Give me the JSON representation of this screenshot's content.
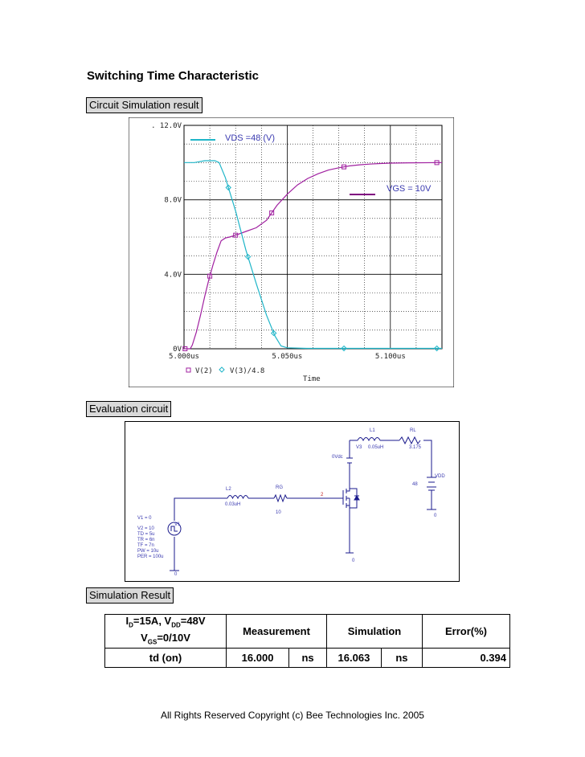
{
  "title": "Switching Time Characteristic",
  "sections": {
    "circuit_sim": "Circuit Simulation result",
    "evaluation": "Evaluation circuit",
    "sim_result": "Simulation Result"
  },
  "chart_data": {
    "type": "line",
    "x_unit": "us",
    "xlim": [
      5.0,
      5.125
    ],
    "ylim": [
      0,
      12
    ],
    "y_ticks": [
      ". 12.0V",
      "8.0V",
      "4.0V",
      "0V"
    ],
    "y_tick_values": [
      12,
      8,
      4,
      0
    ],
    "x_ticks": [
      "5.000us",
      "5.050us",
      "5.100us"
    ],
    "x_tick_values": [
      5.0,
      5.05,
      5.1
    ],
    "xlabel": "Time",
    "grid": true,
    "series": [
      {
        "name": "V(2)",
        "color": "#a020a0",
        "marker": "square",
        "x": [
          5.0,
          5.003,
          5.004,
          5.006,
          5.008,
          5.01,
          5.012,
          5.014,
          5.016,
          5.018,
          5.02,
          5.022,
          5.025,
          5.03,
          5.035,
          5.04,
          5.045,
          5.05,
          5.055,
          5.06,
          5.065,
          5.07,
          5.075,
          5.08,
          5.085,
          5.09,
          5.095,
          5.1,
          5.11,
          5.125
        ],
        "y": [
          0,
          0,
          0.2,
          0.9,
          1.8,
          2.8,
          3.7,
          4.5,
          5.2,
          5.8,
          5.95,
          6.0,
          6.1,
          6.3,
          6.5,
          6.9,
          7.7,
          8.3,
          8.8,
          9.15,
          9.4,
          9.6,
          9.72,
          9.82,
          9.88,
          9.92,
          9.95,
          9.97,
          9.99,
          10.0
        ]
      },
      {
        "name": "V(3)/4.8",
        "color": "#1fb5c8",
        "marker": "diamond",
        "x": [
          5.0,
          5.005,
          5.01,
          5.015,
          5.017,
          5.02,
          5.025,
          5.03,
          5.035,
          5.04,
          5.044,
          5.047,
          5.05,
          5.06,
          5.08,
          5.1,
          5.125
        ],
        "y": [
          10.0,
          10.0,
          10.1,
          10.1,
          10.0,
          9.2,
          7.4,
          5.3,
          3.5,
          1.8,
          0.7,
          0.15,
          0.05,
          0.02,
          0.02,
          0.02,
          0.02
        ]
      }
    ],
    "annotations": [
      "VDS =48 (V)",
      "VGS = 10V"
    ]
  },
  "circuit": {
    "labels": {
      "l1": "L1",
      "l1_val": "0.05uH",
      "rl": "RL",
      "rl_val": "3.175",
      "v3": "V3",
      "v3_val": "0Vdc",
      "vdd": "VDD",
      "vdd_val": "48",
      "l2": "L2",
      "l2_val": "0.03uH",
      "rg": "RG",
      "rg_val": "10",
      "node2": "2",
      "v1": "V1",
      "gnd": "0"
    },
    "v1_params": [
      "V1 = 0",
      "V2 = 10",
      "TD = 5u",
      "TR = 6n",
      "TF = 7n",
      "PW = 10u",
      "PER = 100u"
    ]
  },
  "table": {
    "cond_line1": "I",
    "cond_line1_sub": "D",
    "cond_line1_rest": "=15A, V",
    "cond_line1_sub2": "DD",
    "cond_line1_end": "=48V",
    "cond_line2": "V",
    "cond_line2_sub": "GS",
    "cond_line2_end": "=0/10V",
    "headers": [
      "Measurement",
      "Simulation",
      "Error(%)"
    ],
    "row_label": "td (on)",
    "measurement": "16.000",
    "meas_unit": "ns",
    "simulation": "16.063",
    "sim_unit": "ns",
    "error": "0.394"
  },
  "footer": "All Rights Reserved Copyright (c) Bee Technologies Inc. 2005"
}
